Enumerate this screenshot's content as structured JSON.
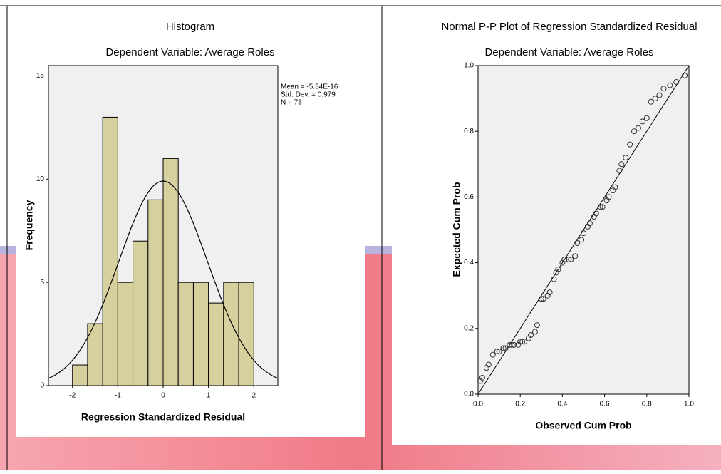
{
  "chart_data": [
    {
      "type": "histogram",
      "title": "Histogram",
      "subtitle": "Dependent Variable: Average Roles",
      "x_label": "Regression Standardized Residual",
      "y_label": "Frequency",
      "bins": [
        -2,
        -1.667,
        -1.333,
        -1,
        -0.667,
        -0.333,
        0,
        0.333,
        0.667,
        1,
        1.333,
        1.667,
        2
      ],
      "values": [
        1,
        3,
        13,
        5,
        7,
        9,
        11,
        5,
        5,
        4,
        5,
        5
      ],
      "color": "#d5d09e",
      "xlim": [
        -2.53,
        2.53
      ],
      "ylim": [
        0,
        15.5
      ],
      "xticks": [
        -2,
        -1,
        0,
        1,
        2
      ],
      "yticks": [
        0,
        5,
        10,
        15
      ],
      "stats": [
        {
          "value": -5.34e-16,
          "label": "Mean = -5.34E-16"
        },
        {
          "value": 0.979,
          "label": "Std. Dev. = 0.979"
        },
        {
          "value": 73,
          "label": "N = 73"
        }
      ]
    },
    {
      "type": "pp",
      "title": "Normal P-P Plot of Regression Standardized Residual",
      "subtitle": "Dependent Variable: Average Roles",
      "x_label": "Observed Cum Prob",
      "y_label": "Expected Cum Prob",
      "x": [
        0.01,
        0.02,
        0.04,
        0.05,
        0.07,
        0.09,
        0.1,
        0.12,
        0.13,
        0.15,
        0.16,
        0.17,
        0.19,
        0.2,
        0.21,
        0.22,
        0.24,
        0.25,
        0.27,
        0.28,
        0.3,
        0.31,
        0.33,
        0.34,
        0.36,
        0.37,
        0.38,
        0.4,
        0.41,
        0.43,
        0.44,
        0.46,
        0.47,
        0.49,
        0.5,
        0.52,
        0.53,
        0.55,
        0.56,
        0.58,
        0.59,
        0.61,
        0.62,
        0.64,
        0.65,
        0.67,
        0.68,
        0.7,
        0.72,
        0.74,
        0.76,
        0.78,
        0.8,
        0.82,
        0.84,
        0.86,
        0.88,
        0.91,
        0.94,
        0.98
      ],
      "values": [
        0.04,
        0.05,
        0.08,
        0.09,
        0.12,
        0.13,
        0.13,
        0.14,
        0.14,
        0.15,
        0.15,
        0.15,
        0.15,
        0.16,
        0.16,
        0.16,
        0.17,
        0.18,
        0.19,
        0.21,
        0.29,
        0.29,
        0.3,
        0.31,
        0.35,
        0.37,
        0.38,
        0.4,
        0.41,
        0.41,
        0.41,
        0.42,
        0.46,
        0.47,
        0.49,
        0.51,
        0.52,
        0.54,
        0.55,
        0.57,
        0.57,
        0.59,
        0.6,
        0.62,
        0.63,
        0.68,
        0.7,
        0.72,
        0.76,
        0.8,
        0.81,
        0.83,
        0.84,
        0.89,
        0.9,
        0.91,
        0.93,
        0.94,
        0.95,
        0.97
      ],
      "color": "#333333",
      "xlim": [
        0,
        1
      ],
      "ylim": [
        0,
        1
      ],
      "xticks": [
        {
          "value": 0,
          "label": "0.0"
        },
        0.2,
        0.4,
        0.6,
        0.8,
        {
          "value": 1,
          "label": "1.0"
        }
      ],
      "yticks": [
        {
          "value": 0,
          "label": "0.0"
        },
        0.2,
        0.4,
        0.6,
        0.8,
        {
          "value": 1,
          "label": "1.0"
        }
      ]
    }
  ]
}
